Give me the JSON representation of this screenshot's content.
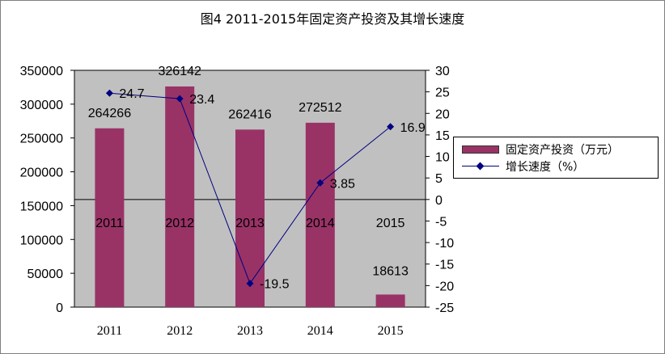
{
  "chart_data": {
    "type": "bar+line",
    "title": "图4  2011-2015年固定资产投资及其增长速度",
    "categories": [
      "2011",
      "2012",
      "2013",
      "2014",
      "2015"
    ],
    "series": [
      {
        "name": "固定资产投资（万元）",
        "type": "bar",
        "axis": "left",
        "values": [
          264266,
          326142,
          262416,
          272512,
          18613
        ],
        "labels": [
          "264266",
          "326142",
          "262416",
          "272512",
          "18613"
        ]
      },
      {
        "name": "增长速度（%）",
        "type": "line",
        "axis": "right",
        "values": [
          24.7,
          23.4,
          -19.5,
          3.85,
          16.9
        ],
        "labels": [
          "24.7",
          "23.4",
          "-19.5",
          "3.85",
          "16.9"
        ]
      }
    ],
    "left_axis": {
      "ylim": [
        0,
        350000
      ],
      "ticks": [
        "0",
        "50000",
        "100000",
        "150000",
        "200000",
        "250000",
        "300000",
        "350000"
      ]
    },
    "right_axis": {
      "ylim": [
        -25,
        30
      ],
      "ticks": [
        "30",
        "25",
        "20",
        "15",
        "10",
        "5",
        "0",
        "-5",
        "-10",
        "-15",
        "-20",
        "-25"
      ]
    },
    "legend_position": "right",
    "grid": false,
    "colors": {
      "bar": "#993366",
      "line": "#000080",
      "plot_bg": "#c0c0c0"
    }
  }
}
